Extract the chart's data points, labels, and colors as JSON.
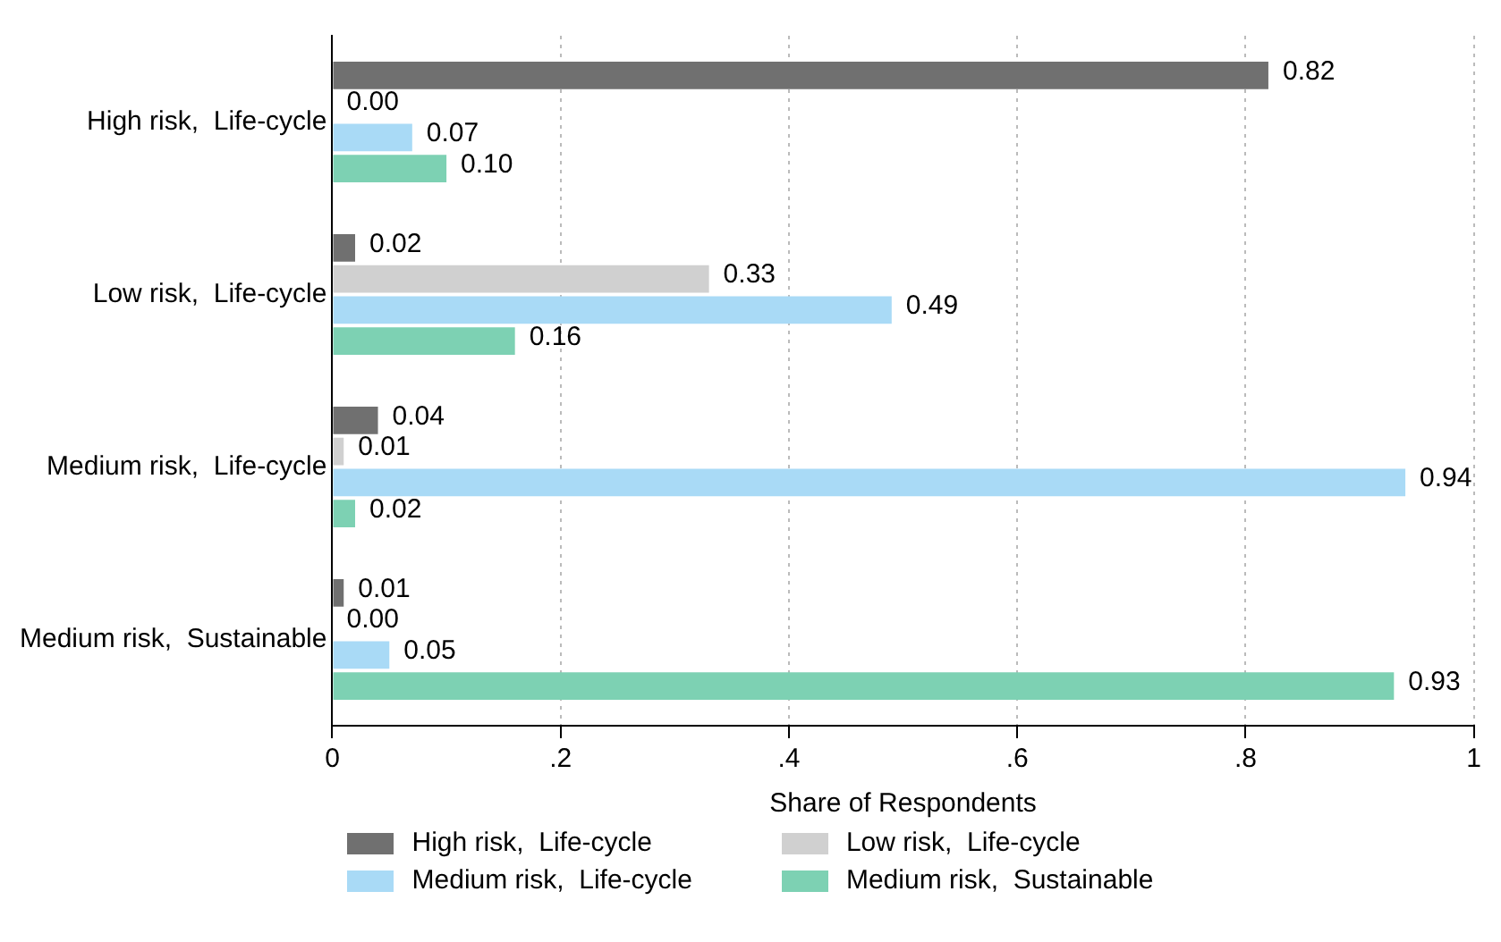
{
  "chart_data": {
    "type": "bar",
    "orientation": "horizontal",
    "xlabel": "Share of Respondents",
    "categories": [
      "High risk,  Life-cycle",
      "Low risk,  Life-cycle",
      "Medium risk,  Life-cycle",
      "Medium risk,  Sustainable"
    ],
    "series": [
      {
        "name": "High risk,  Life-cycle",
        "color": "#707070",
        "values": [
          0.82,
          0.02,
          0.04,
          0.01
        ],
        "value_labels": [
          "0.82",
          "0.02",
          "0.04",
          "0.01"
        ]
      },
      {
        "name": "Low risk,  Life-cycle",
        "color": "#d0d0d0",
        "values": [
          0.0,
          0.33,
          0.01,
          0.0
        ],
        "value_labels": [
          "0.00",
          "0.33",
          "0.01",
          "0.00"
        ]
      },
      {
        "name": "Medium risk,  Life-cycle",
        "color": "#a9daf6",
        "values": [
          0.07,
          0.49,
          0.94,
          0.05
        ],
        "value_labels": [
          "0.07",
          "0.49",
          "0.94",
          "0.05"
        ]
      },
      {
        "name": "Medium risk,  Sustainable",
        "color": "#7dd1b3",
        "values": [
          0.1,
          0.16,
          0.02,
          0.93
        ],
        "value_labels": [
          "0.10",
          "0.16",
          "0.02",
          "0.93"
        ]
      }
    ],
    "xlim": [
      0,
      1
    ],
    "xticks": [
      {
        "value": 0,
        "label": "0"
      },
      {
        "value": 0.2,
        "label": ".2"
      },
      {
        "value": 0.4,
        "label": ".4"
      },
      {
        "value": 0.6,
        "label": ".6"
      },
      {
        "value": 0.8,
        "label": ".8"
      },
      {
        "value": 1,
        "label": "1"
      }
    ],
    "grid": "x",
    "legend": "bottom"
  }
}
